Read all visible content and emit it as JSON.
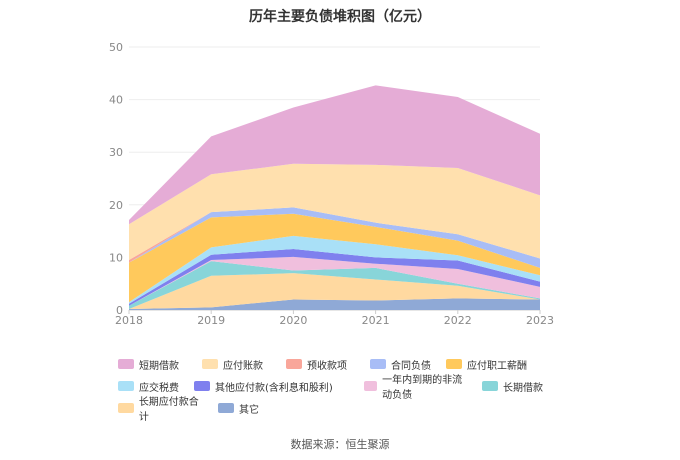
{
  "chart_data": {
    "type": "area",
    "title": "历年主要负债堆积图（亿元）",
    "x": [
      "2018",
      "2019",
      "2020",
      "2021",
      "2022",
      "2023"
    ],
    "ylim": [
      0,
      50
    ],
    "yticks": [
      "0",
      "10",
      "20",
      "30",
      "40",
      "50"
    ],
    "grid": true,
    "legend_position": "bottom",
    "stacked": true,
    "series": [
      {
        "name": "其它",
        "color": "#8fa9d6",
        "values": [
          0.2,
          0.5,
          2.0,
          1.8,
          2.2,
          2.0
        ]
      },
      {
        "name": "长期应付款合计",
        "color": "#ffd9a0",
        "values": [
          0.0,
          6.0,
          5.0,
          4.0,
          2.4,
          0.0
        ]
      },
      {
        "name": "长期借款",
        "color": "#88d5d9",
        "values": [
          0.6,
          2.8,
          0.5,
          2.2,
          0.4,
          0.2
        ]
      },
      {
        "name": "一年内到期的非流动负债",
        "color": "#f0bfdd",
        "values": [
          0.0,
          0.2,
          2.6,
          0.8,
          2.8,
          2.2
        ]
      },
      {
        "name": "其他应付款(含利息和股利)",
        "color": "#7f80ee",
        "values": [
          0.4,
          1.0,
          1.5,
          1.2,
          1.6,
          1.0
        ]
      },
      {
        "name": "应交税费",
        "color": "#a9e0f7",
        "values": [
          0.3,
          1.4,
          2.5,
          2.5,
          1.0,
          1.2
        ]
      },
      {
        "name": "应付职工薪酬",
        "color": "#ffc95c",
        "values": [
          7.5,
          5.7,
          4.2,
          3.3,
          2.8,
          1.4
        ]
      },
      {
        "name": "合同负债",
        "color": "#a8bdf6",
        "values": [
          0.0,
          1.0,
          1.2,
          0.8,
          1.2,
          1.8
        ]
      },
      {
        "name": "预收款项",
        "color": "#f9a69a",
        "values": [
          0.5,
          0.0,
          0.0,
          0.0,
          0.0,
          0.0
        ]
      },
      {
        "name": "应付账款",
        "color": "#ffe0ae",
        "values": [
          6.8,
          7.2,
          8.3,
          11.0,
          12.6,
          12.0
        ]
      },
      {
        "name": "短期借款",
        "color": "#e5acd6",
        "values": [
          0.8,
          7.2,
          10.7,
          15.1,
          13.5,
          11.7
        ]
      }
    ],
    "legend_order": [
      "短期借款",
      "应付账款",
      "预收款项",
      "合同负债",
      "应付职工薪酬",
      "应交税费",
      "其他应付款(含利息和股利)",
      "一年内到期的非流动负债",
      "长期借款",
      "长期应付款合计",
      "其它"
    ],
    "source": "数据来源：恒生聚源"
  }
}
